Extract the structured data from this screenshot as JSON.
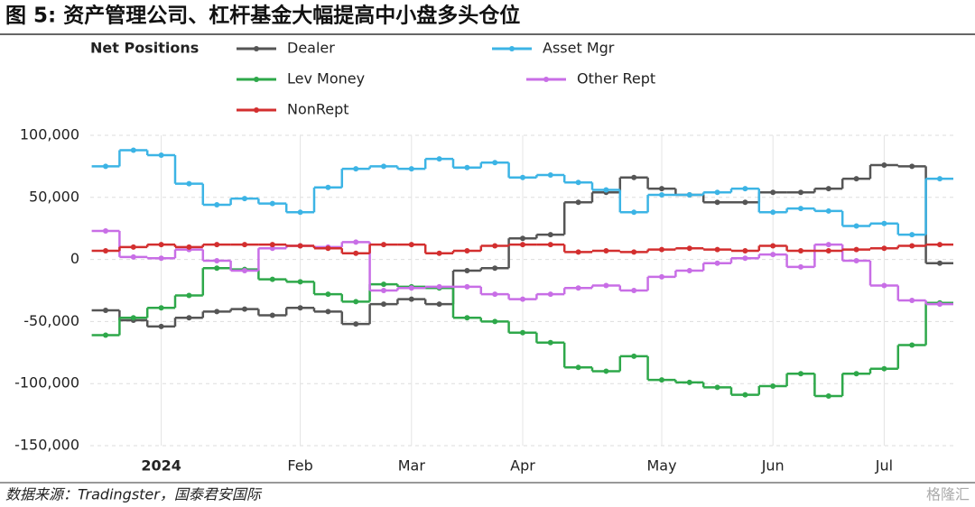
{
  "chart_data": {
    "type": "line",
    "step": "mid",
    "title": "图 5: 资产管理公司、杠杆基金大幅提高中小盘多头仓位",
    "legend_title": "Net Positions",
    "source": "数据来源：Tradingster，国泰君安国际",
    "watermark": "格隆汇",
    "categories": [
      null,
      null,
      "2024",
      null,
      null,
      null,
      null,
      "Feb",
      null,
      null,
      null,
      "Mar",
      null,
      null,
      null,
      "Apr",
      null,
      null,
      null,
      null,
      "May",
      null,
      null,
      null,
      "Jun",
      null,
      null,
      null,
      "Jul",
      null,
      null
    ],
    "ylim": [
      -150000,
      100000
    ],
    "yticks": [
      {
        "value": 100000,
        "label": "100,000"
      },
      {
        "value": 50000,
        "label": "50,000"
      },
      0,
      {
        "value": -50000,
        "label": "-50,000"
      },
      {
        "value": -100000,
        "label": "-100,000"
      },
      {
        "value": -150000,
        "label": "-150,000"
      }
    ],
    "grid": true,
    "series": [
      {
        "name": "Dealer",
        "color": "#555555",
        "values": [
          -41000,
          -49000,
          -54000,
          -47000,
          -42000,
          -40000,
          -45000,
          -39000,
          -42000,
          -52000,
          -36000,
          -32000,
          -36000,
          -9000,
          -7000,
          17000,
          20000,
          46000,
          54000,
          66000,
          57000,
          52000,
          46000,
          46000,
          54000,
          54000,
          57000,
          65000,
          76000,
          75000,
          -3000
        ]
      },
      {
        "name": "Asset Mgr",
        "color": "#3cb4e5",
        "values": [
          75000,
          88000,
          84000,
          61000,
          44000,
          49000,
          45000,
          38000,
          58000,
          73000,
          75000,
          73000,
          81000,
          74000,
          78000,
          66000,
          68000,
          62000,
          56000,
          38000,
          52000,
          52000,
          54000,
          57000,
          38000,
          41000,
          39000,
          27000,
          29000,
          20000,
          65000
        ]
      },
      {
        "name": "Lev Money",
        "color": "#2ea84a",
        "values": [
          -61000,
          -47000,
          -39000,
          -29000,
          -7000,
          -8000,
          -16000,
          -18000,
          -28000,
          -34000,
          -20000,
          -22000,
          -23000,
          -47000,
          -50000,
          -59000,
          -67000,
          -87000,
          -90000,
          -78000,
          -97000,
          -99000,
          -103000,
          -109000,
          -102000,
          -92000,
          -110000,
          -92000,
          -88000,
          -69000,
          -35000
        ]
      },
      {
        "name": "Other Rept",
        "color": "#c86ee6",
        "values": [
          23000,
          2000,
          1000,
          8000,
          -1000,
          -9000,
          9000,
          11000,
          10000,
          14000,
          -25000,
          -23000,
          -22000,
          -22000,
          -28000,
          -32000,
          -28000,
          -23000,
          -21000,
          -25000,
          -14000,
          -9000,
          -3000,
          1000,
          4000,
          -6000,
          12000,
          -1000,
          -21000,
          -33000,
          -36000
        ]
      },
      {
        "name": "NonRept",
        "color": "#d32f2f",
        "values": [
          7000,
          10000,
          12000,
          10000,
          12000,
          12000,
          12000,
          11000,
          9000,
          5000,
          12000,
          12000,
          5000,
          7000,
          11000,
          12000,
          12000,
          6000,
          7000,
          6000,
          8000,
          9000,
          8000,
          7000,
          11000,
          7000,
          7000,
          8000,
          9000,
          11000,
          12000
        ]
      }
    ]
  }
}
